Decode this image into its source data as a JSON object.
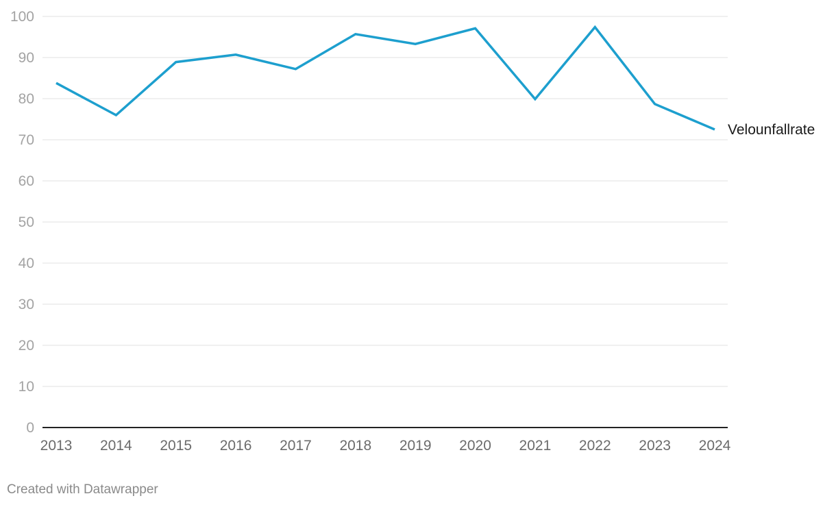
{
  "chart_data": {
    "type": "line",
    "x": [
      "2013",
      "2014",
      "2015",
      "2016",
      "2017",
      "2018",
      "2019",
      "2020",
      "2021",
      "2022",
      "2023",
      "2024"
    ],
    "series": [
      {
        "name": "Velounfallrate",
        "values": [
          83.8,
          76.0,
          88.9,
          90.7,
          87.2,
          95.7,
          93.3,
          97.1,
          79.9,
          97.4,
          78.7,
          72.5
        ],
        "color": "#1d9fce"
      }
    ],
    "yticks": [
      0,
      10,
      20,
      30,
      40,
      50,
      60,
      70,
      80,
      90,
      100
    ],
    "ylim": [
      0,
      100
    ],
    "grid": true,
    "title": "",
    "xlabel": "",
    "ylabel": ""
  },
  "footer": {
    "credit": "Created with Datawrapper"
  }
}
